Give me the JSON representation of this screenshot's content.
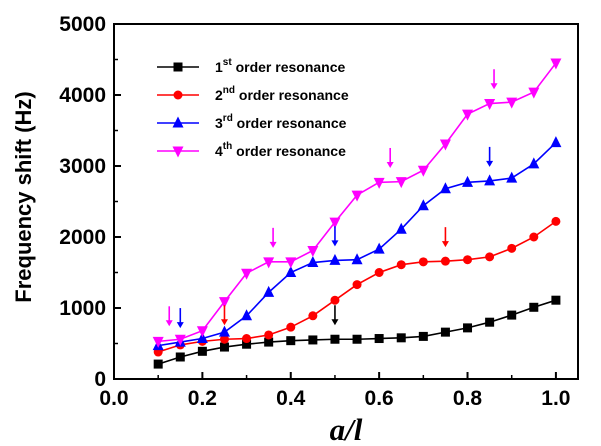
{
  "chart_data": {
    "type": "line",
    "xlabel": "a/l",
    "ylabel": "Frequency shift (Hz)",
    "xlim": [
      0.0,
      1.05
    ],
    "ylim": [
      0,
      5000
    ],
    "x_ticks": [
      "0.0",
      "0.2",
      "0.4",
      "0.6",
      "0.8",
      "1.0"
    ],
    "y_ticks": [
      "0",
      "1000",
      "2000",
      "3000",
      "4000",
      "5000"
    ],
    "x": [
      0.1,
      0.15,
      0.2,
      0.25,
      0.3,
      0.35,
      0.4,
      0.45,
      0.5,
      0.55,
      0.6,
      0.65,
      0.7,
      0.75,
      0.8,
      0.85,
      0.9,
      0.95,
      1.0
    ],
    "legend_position": "top-left",
    "grid": false,
    "series": [
      {
        "name_main": "1",
        "name_sup": "st",
        "name_rest": " order resonance",
        "color": "#000000",
        "marker": "square",
        "values": [
          210,
          310,
          390,
          450,
          490,
          520,
          540,
          550,
          560,
          560,
          570,
          580,
          600,
          660,
          720,
          800,
          900,
          1010,
          1110
        ],
        "arrows": [
          0.5
        ]
      },
      {
        "name_main": "2",
        "name_sup": "nd",
        "name_rest": " order resonance",
        "color": "#ff0000",
        "marker": "circle",
        "values": [
          380,
          480,
          530,
          560,
          570,
          620,
          730,
          890,
          1110,
          1330,
          1500,
          1610,
          1650,
          1660,
          1680,
          1720,
          1840,
          2000,
          2220
        ],
        "arrows": [
          0.25,
          0.75
        ]
      },
      {
        "name_main": "3",
        "name_sup": "rd",
        "name_rest": " order resonance",
        "color": "#0000ff",
        "marker": "triangle-up",
        "values": [
          470,
          520,
          570,
          660,
          890,
          1220,
          1500,
          1640,
          1670,
          1680,
          1830,
          2110,
          2440,
          2680,
          2770,
          2790,
          2830,
          3030,
          3330
        ],
        "arrows": [
          0.15,
          0.5,
          0.85
        ]
      },
      {
        "name_main": "4",
        "name_sup": "th",
        "name_rest": " order resonance",
        "color": "#ff00ff",
        "marker": "triangle-down",
        "values": [
          530,
          560,
          680,
          1090,
          1490,
          1650,
          1650,
          1810,
          2210,
          2590,
          2770,
          2780,
          2940,
          3310,
          3730,
          3880,
          3900,
          4040,
          4450
        ],
        "arrows": [
          0.125,
          0.36,
          0.625,
          0.86
        ]
      }
    ]
  }
}
